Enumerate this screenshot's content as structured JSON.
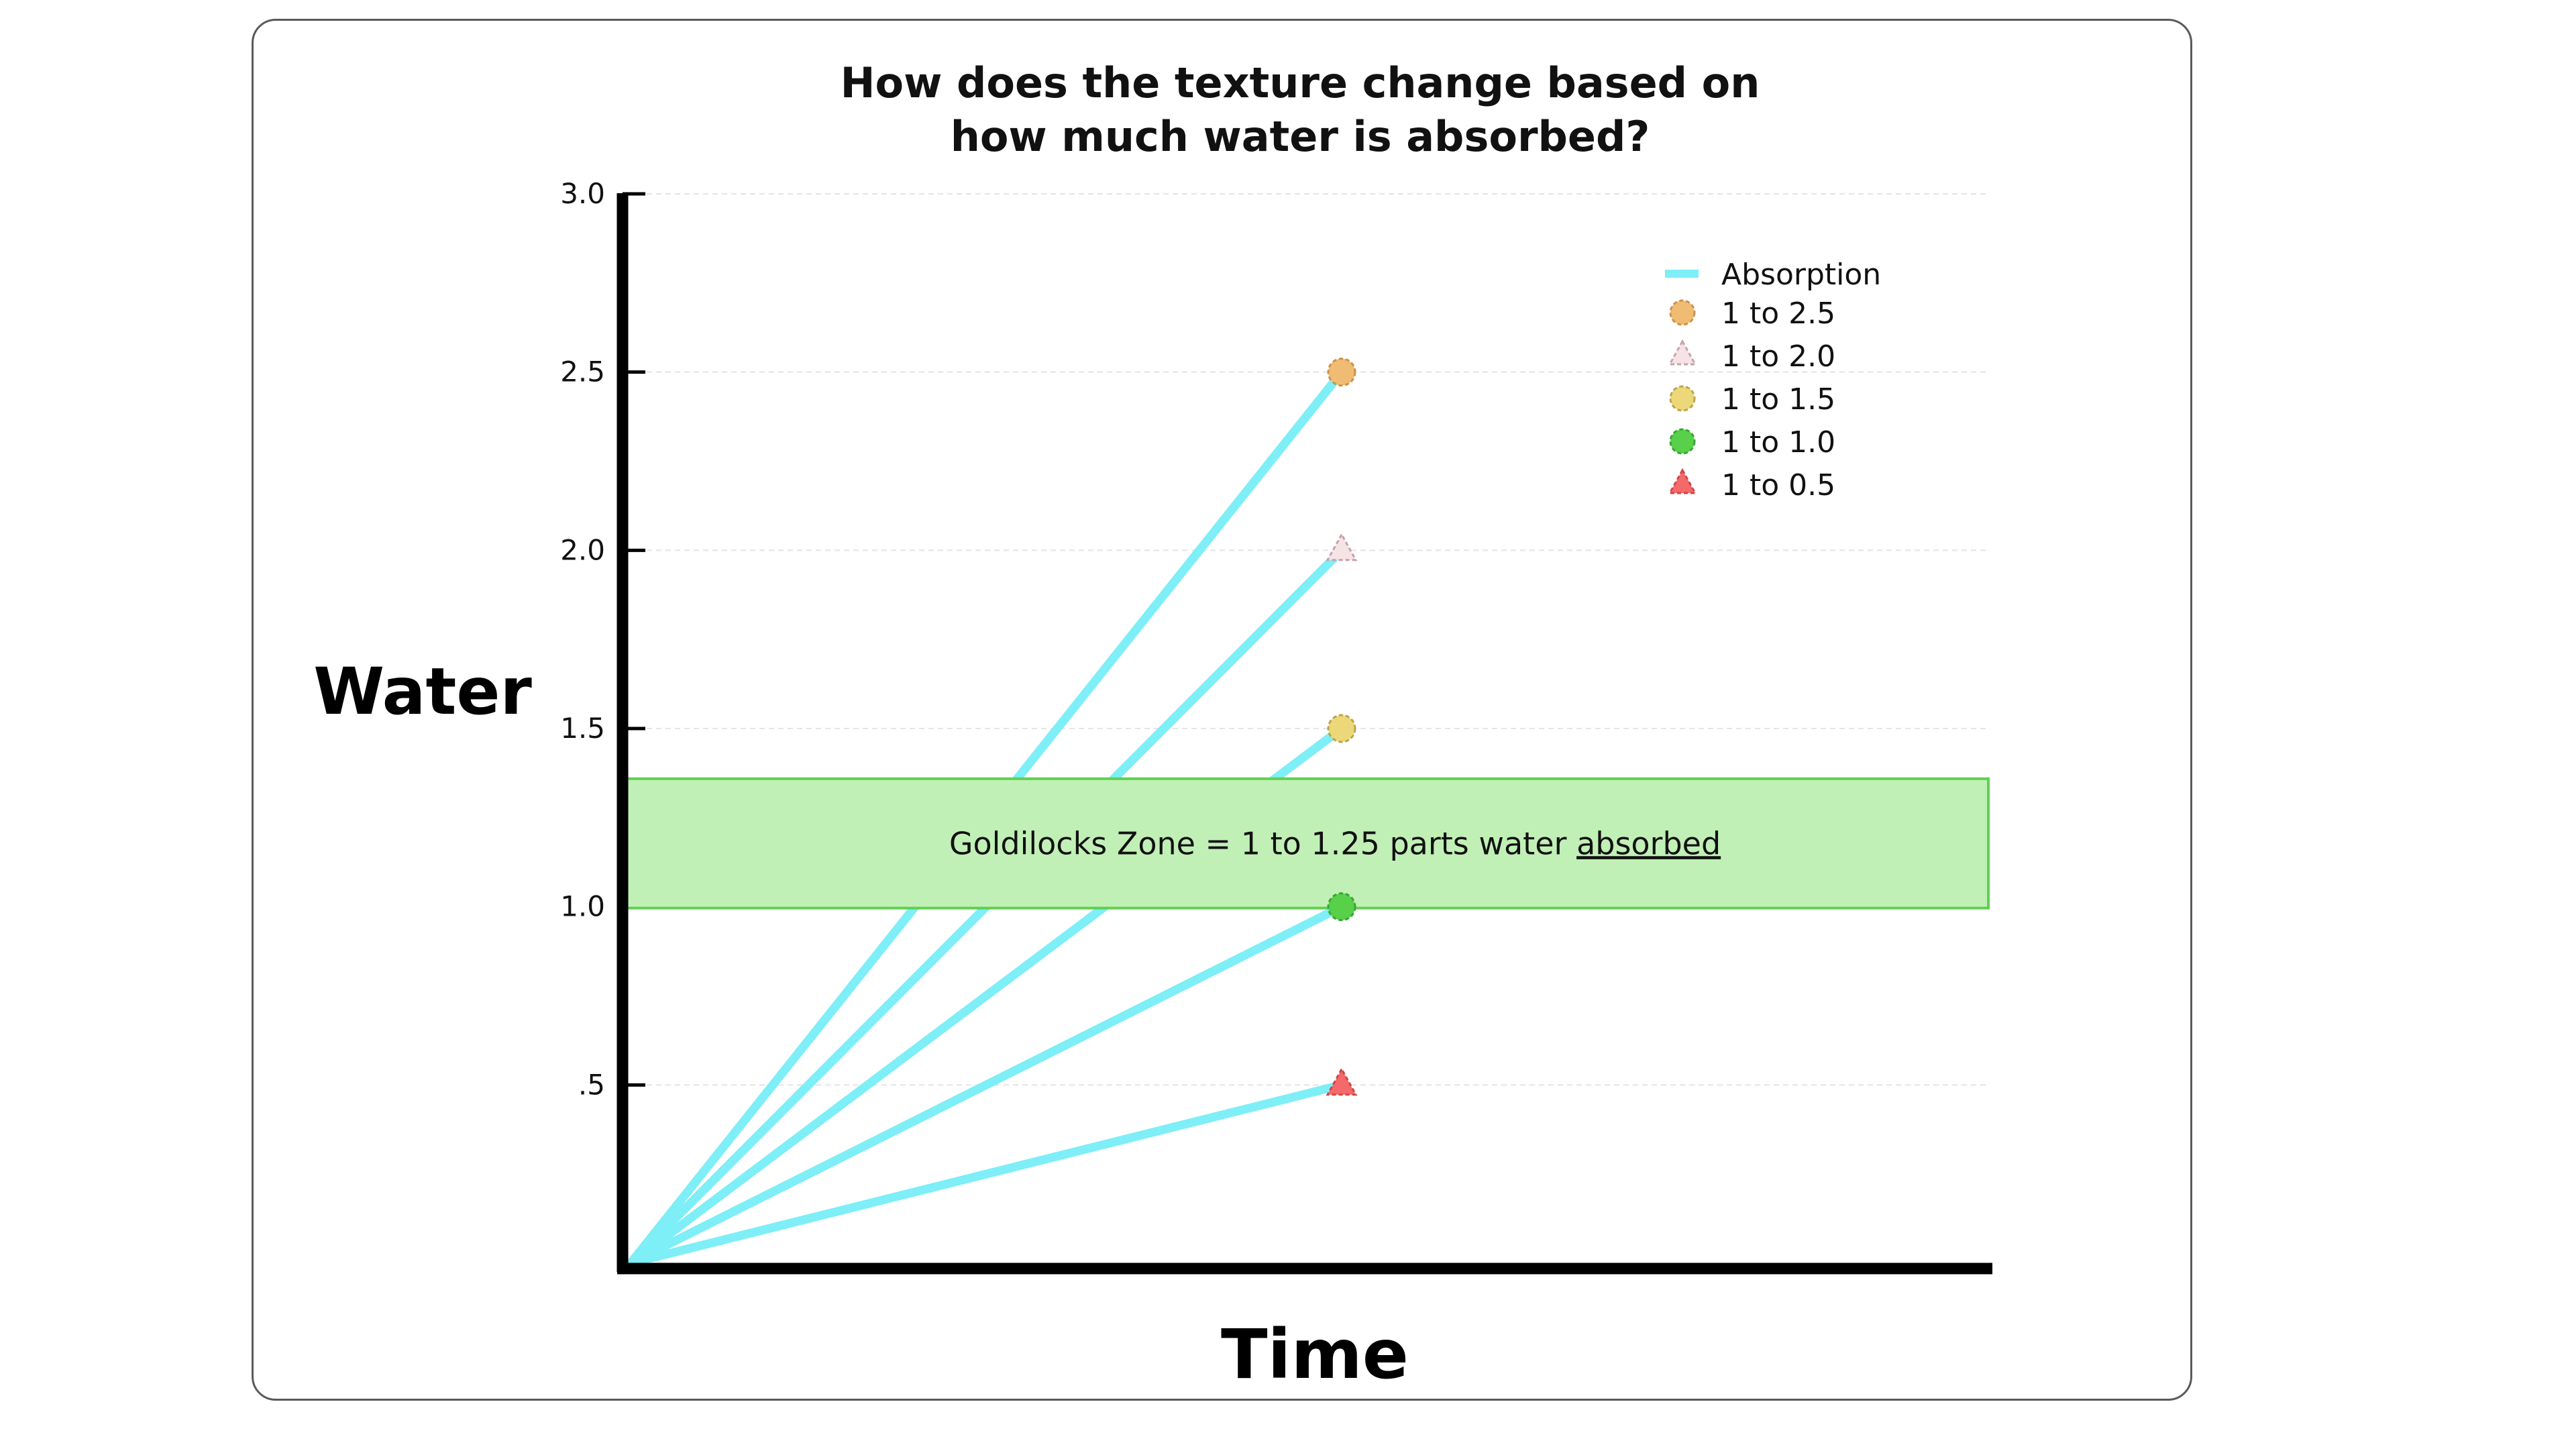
{
  "chart_data": {
    "type": "line",
    "title_lines": [
      "How does the texture change based on",
      "how much water is absorbed?"
    ],
    "xlabel": "Time",
    "ylabel": "Water",
    "ylim": [
      0,
      3.0
    ],
    "y_ticks": [
      {
        "value": 3.0,
        "label": "3.0"
      },
      {
        "value": 2.5,
        "label": "2.5"
      },
      {
        "value": 2.0,
        "label": "2.0"
      },
      {
        "value": 1.5,
        "label": "1.5"
      },
      {
        "value": 1.0,
        "label": "1.0"
      },
      {
        "value": 0.5,
        "label": ".5"
      }
    ],
    "grid": "horizontal",
    "line_color": "#7eeef7",
    "line_legend": "Absorption",
    "series": [
      {
        "name": "1 to 2.5",
        "start": 0,
        "end": 2.5,
        "marker": "circle",
        "color": "#f0bb72",
        "stroke": "#c9934c"
      },
      {
        "name": "1 to 2.0",
        "start": 0,
        "end": 2.0,
        "marker": "triangle",
        "color": "#f6e3e6",
        "stroke": "#c7a3aa"
      },
      {
        "name": "1 to 1.5",
        "start": 0,
        "end": 1.5,
        "marker": "circle",
        "color": "#ecd879",
        "stroke": "#b9a44a"
      },
      {
        "name": "1 to 1.0",
        "start": 0,
        "end": 1.0,
        "marker": "circle",
        "color": "#58d04a",
        "stroke": "#3aa532"
      },
      {
        "name": "1 to 0.5",
        "start": 0,
        "end": 0.5,
        "marker": "triangle",
        "color": "#f46a6a",
        "stroke": "#d24545"
      }
    ],
    "legend_position": "top-right",
    "band": {
      "from": 1.0,
      "to": 1.25,
      "fill": "#c1f0b6",
      "stroke": "#5dd150",
      "label": "Goldilocks Zone = 1 to 1.25 parts water",
      "label_underlined": "absorbed"
    }
  }
}
